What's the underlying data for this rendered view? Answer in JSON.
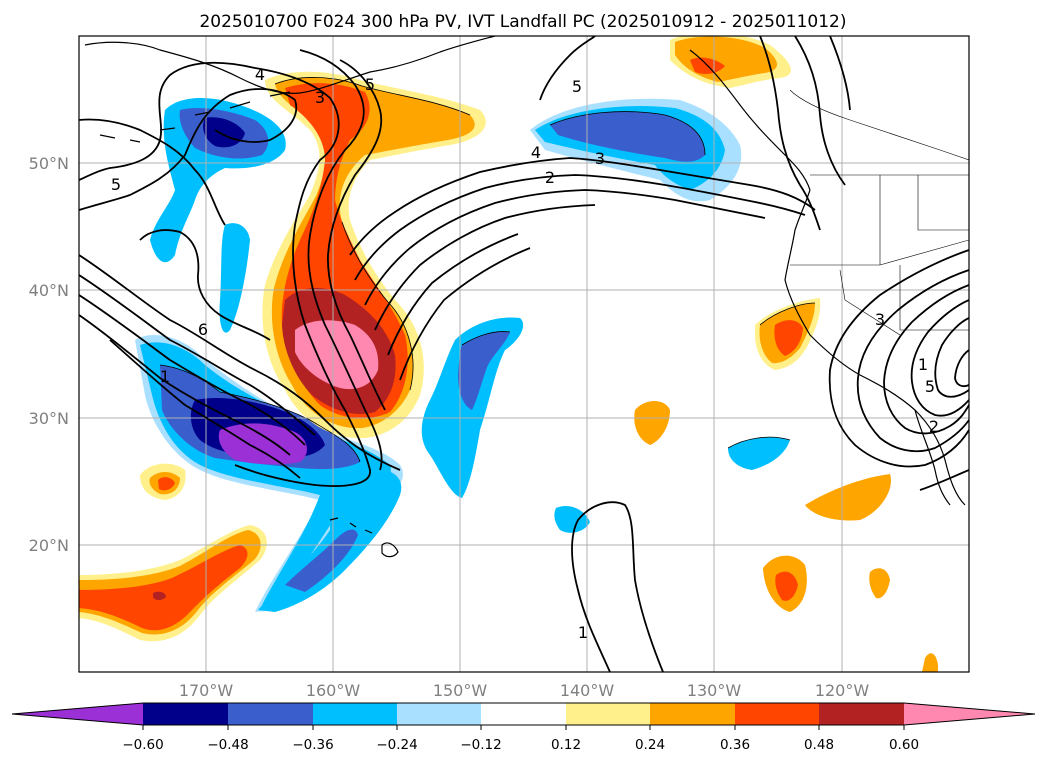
{
  "title": "2025010700 F024 300 hPa PV, IVT Landfall PC (2025010912 - 2025011012)",
  "map": {
    "lon_range": [
      180,
      110
    ],
    "lat_range": [
      10,
      60
    ],
    "lat_ticks": [
      {
        "value": 50,
        "label": "50°N"
      },
      {
        "value": 40,
        "label": "40°N"
      },
      {
        "value": 30,
        "label": "30°N"
      },
      {
        "value": 20,
        "label": "20°N"
      }
    ],
    "lon_ticks": [
      {
        "value": 170,
        "label": "170°W"
      },
      {
        "value": 160,
        "label": "160°W"
      },
      {
        "value": 150,
        "label": "150°W"
      },
      {
        "value": 140,
        "label": "140°W"
      },
      {
        "value": 130,
        "label": "130°W"
      },
      {
        "value": 120,
        "label": "120°W"
      }
    ],
    "gridlines": true,
    "contour_labels": [
      "4",
      "5",
      "5",
      "5",
      "3",
      "4",
      "3",
      "2",
      "6",
      "1",
      "3",
      "1",
      "5",
      "2",
      "1"
    ]
  },
  "colorbar": {
    "extend": "both",
    "ticks": [
      "−0.60",
      "−0.48",
      "−0.36",
      "−0.24",
      "−0.12",
      "0.12",
      "0.24",
      "0.36",
      "0.48",
      "0.60"
    ],
    "colors": {
      "lt_neg060": "#9b30d6",
      "neg060_neg048": "#00008b",
      "neg048_neg036": "#3a5fcd",
      "neg036_neg024": "#00bfff",
      "neg024_neg012": "#aae0ff",
      "neg012_012": "#ffffff",
      "p012_p024": "#fff08c",
      "p024_p036": "#ffa500",
      "p036_p048": "#ff4500",
      "p048_p060": "#b22222",
      "gt_p060": "#ff88b0"
    }
  }
}
